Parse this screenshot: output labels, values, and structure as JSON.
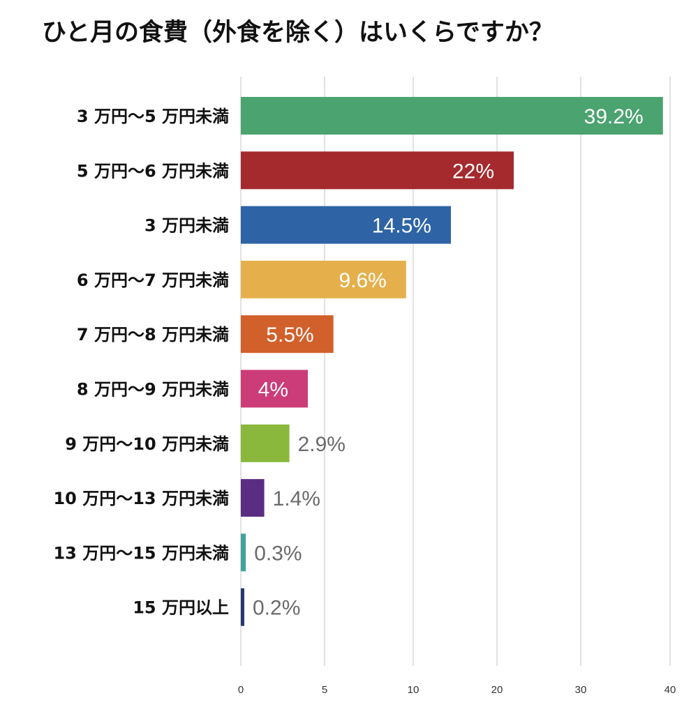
{
  "chart_data": {
    "type": "bar",
    "orientation": "horizontal",
    "title": "ひと月の食費（外食を除く）はいくらですか？",
    "categories": [
      "3 万円〜5 万円未満",
      "5 万円〜6 万円未満",
      "3 万円未満",
      "6 万円〜7 万円未満",
      "7 万円〜8 万円未満",
      "8 万円〜9 万円未満",
      "9 万円〜10 万円未満",
      "10 万円〜13 万円未満",
      "13 万円〜15 万円未満",
      "15 万円以上"
    ],
    "values": [
      39.2,
      22,
      14.5,
      9.6,
      5.5,
      4,
      2.9,
      1.4,
      0.3,
      0.2
    ],
    "data_labels": [
      "39.2%",
      "22%",
      "14.5%",
      "9.6%",
      "5.5%",
      "4%",
      "2.9%",
      "1.4%",
      "0.3%",
      "0.2%"
    ],
    "colors": [
      "#4ba36f",
      "#a52a2e",
      "#2e64a6",
      "#e5b04c",
      "#d2602b",
      "#cc3c78",
      "#8ab83c",
      "#5a2d82",
      "#42a39c",
      "#27386e"
    ],
    "axis_ticks": [
      0,
      5,
      10,
      20,
      30,
      40
    ],
    "axis_tick_labels": [
      "0",
      "5",
      "10",
      "20",
      "30",
      "40"
    ],
    "xlabel": "",
    "ylabel": "",
    "grid": true
  }
}
